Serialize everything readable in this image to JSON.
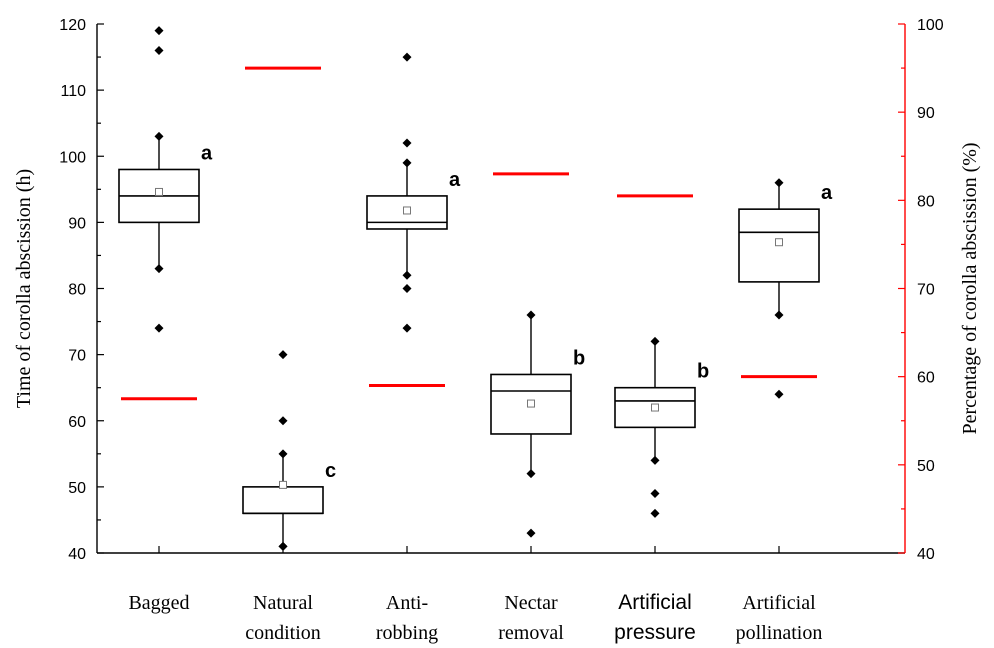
{
  "chart_data": {
    "type": "boxplot",
    "title": "",
    "ylabel": "Time of corolla abscission (h)",
    "y2label": "Percentage of corolla abscission (%)",
    "ylim": [
      40,
      120
    ],
    "y2lim": [
      40,
      100
    ],
    "yticks": [
      40,
      50,
      60,
      70,
      80,
      90,
      100,
      110,
      120
    ],
    "y2ticks": [
      40,
      50,
      60,
      70,
      80,
      90,
      100
    ],
    "percentage_color": "#ff0000",
    "categories": [
      {
        "label_lines": [
          "Bagged"
        ],
        "style": "serif"
      },
      {
        "label_lines": [
          "Natural",
          "condition"
        ],
        "style": "serif"
      },
      {
        "label_lines": [
          "Anti-",
          "robbing"
        ],
        "style": "serif"
      },
      {
        "label_lines": [
          "Nectar",
          "removal"
        ],
        "style": "serif"
      },
      {
        "label_lines": [
          "Artificial",
          "pressure"
        ],
        "style": "sans"
      },
      {
        "label_lines": [
          "Artificial",
          "pollination"
        ],
        "style": "serif"
      }
    ],
    "boxes": [
      {
        "whisker_low": 83,
        "q1": 90,
        "median": 94,
        "q3": 98,
        "whisker_high": 103,
        "mean": 94.6,
        "outliers": [
          74,
          116,
          119
        ],
        "sig": "a"
      },
      {
        "whisker_low": 41,
        "q1": 46,
        "median": 46,
        "q3": 50,
        "whisker_high": 55,
        "mean": 50.3,
        "outliers": [
          41,
          60,
          70
        ],
        "sig": "c"
      },
      {
        "whisker_low": 82,
        "q1": 89,
        "median": 90,
        "q3": 94,
        "whisker_high": 99,
        "mean": 91.8,
        "outliers": [
          74,
          80,
          102,
          115
        ],
        "sig": "a"
      },
      {
        "whisker_low": 52,
        "q1": 58,
        "median": 64.5,
        "q3": 67,
        "whisker_high": 76,
        "mean": 62.6,
        "outliers": [
          43
        ],
        "sig": "b"
      },
      {
        "whisker_low": 54,
        "q1": 59,
        "median": 63,
        "q3": 65,
        "whisker_high": 72,
        "mean": 62,
        "outliers": [
          46,
          49
        ],
        "sig": "b"
      },
      {
        "whisker_low": 76,
        "q1": 81,
        "median": 88.5,
        "q3": 92,
        "whisker_high": 96,
        "mean": 87,
        "outliers": [
          64
        ],
        "sig": "a"
      }
    ],
    "percentage": [
      57.5,
      95,
      59,
      83,
      80.5,
      60
    ]
  }
}
